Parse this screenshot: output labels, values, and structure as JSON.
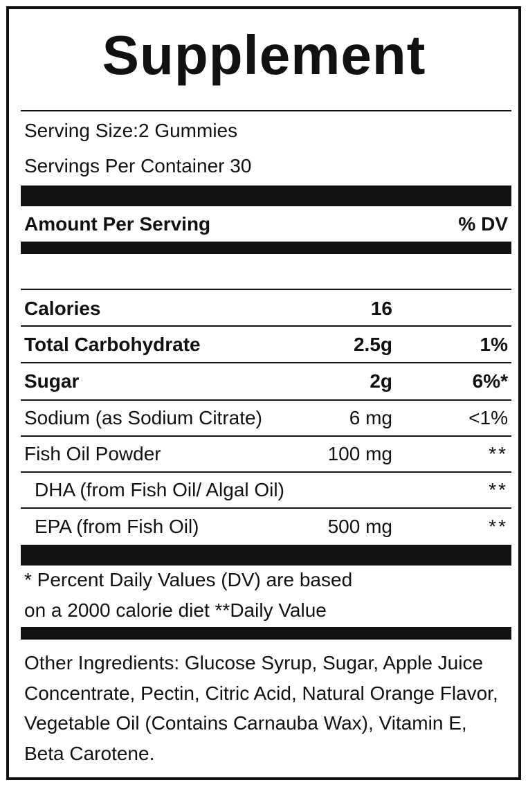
{
  "title": "Supplement",
  "serving": {
    "size": "Serving Size:2 Gummies",
    "per_container": "Servings Per Container 30"
  },
  "header": {
    "amount_per_serving": "Amount Per Serving",
    "dv": "% DV"
  },
  "rows": [
    {
      "name": "Calories",
      "amount": "16",
      "dv": ""
    },
    {
      "name": "Total Carbohydrate",
      "amount": "2.5g",
      "dv": "1%"
    },
    {
      "name": "Sugar",
      "amount": "2g",
      "dv": "6%*"
    },
    {
      "name": "Sodium (as Sodium Citrate)",
      "amount": "6 mg",
      "dv": "<1%"
    },
    {
      "name": "Fish Oil Powder",
      "amount": "100 mg",
      "dv": "**"
    },
    {
      "name": "DHA (from Fish Oil/ Algal Oil)",
      "amount": "",
      "dv": "**"
    },
    {
      "name": "EPA (from Fish Oil)",
      "amount": "500 mg",
      "dv": "**"
    }
  ],
  "footnote": {
    "line1": "* Percent Daily Values (DV) are based",
    "line2": "on a 2000 calorie diet **Daily Value"
  },
  "other_ingredients": "Other Ingredients:  Glucose Syrup, Sugar, Apple Juice Concentrate, Pectin, Citric Acid, Natural Orange Flavor, Vegetable Oil (Contains Carnauba Wax), Vitamin E, Beta Carotene."
}
